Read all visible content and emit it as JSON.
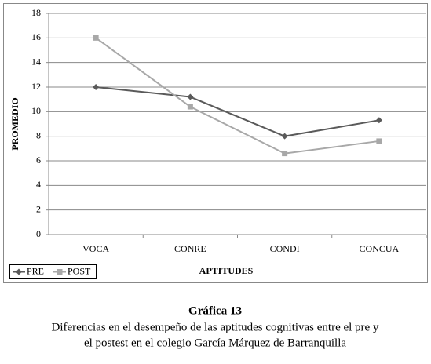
{
  "chart_data": {
    "type": "line",
    "x_label": "APTITUDES",
    "y_label": "PROMEDIO",
    "categories": [
      "VOCA",
      "CONRE",
      "CONDI",
      "CONCUA"
    ],
    "series": [
      {
        "name": "PRE",
        "color": "#5a5a5a",
        "marker": "diamond",
        "values": [
          12,
          11.2,
          8.0,
          9.3
        ]
      },
      {
        "name": "POST",
        "color": "#a8a8a8",
        "marker": "square",
        "values": [
          16,
          10.4,
          6.6,
          7.6
        ]
      }
    ],
    "ylim": [
      0,
      18
    ],
    "yticks": [
      0,
      2,
      4,
      6,
      8,
      10,
      12,
      14,
      16,
      18
    ],
    "grid": true,
    "legend": "bottom-left"
  },
  "figure": {
    "title": "Gráfica 13",
    "caption": [
      "Diferencias en el desempeño de las aptitudes cognitivas entre el pre y",
      "el postest en el colegio García Márquez de Barranquilla"
    ]
  }
}
